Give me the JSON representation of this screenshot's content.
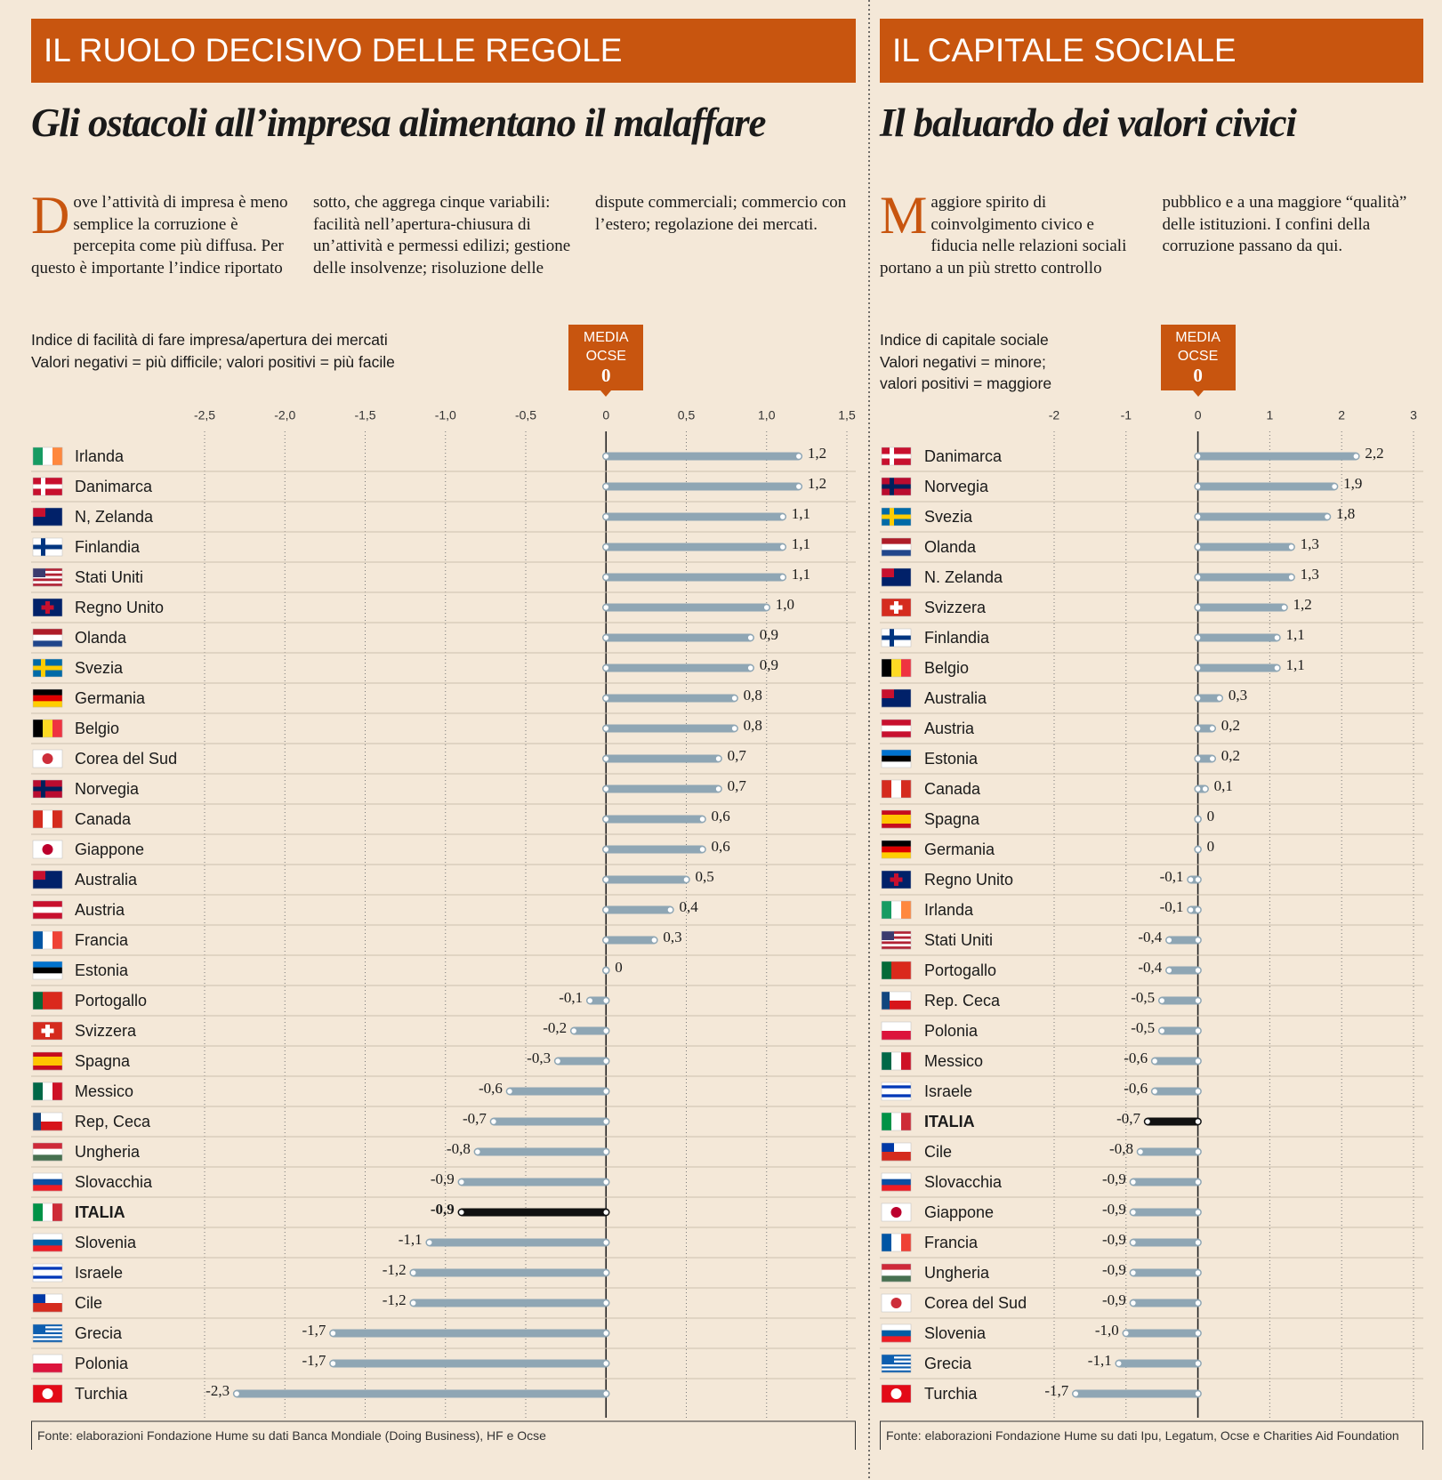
{
  "chart_data": [
    {
      "type": "bar",
      "header": "IL RUOLO DECISIVO DELLE REGOLE",
      "title": "Gli ostacoli all’impresa alimentano il malaffare",
      "intro": "Dove l’attività di impresa è meno semplice la corruzione è percepita come più diffusa. Per questo è importante l’indice riportato sotto, che aggrega cinque variabili: facilità nell’apertura-chiusura di un’attività e permessi edilizi; gestione delle insolvenze; risoluzione delle dispute commerciali; commercio con l’estero; regolazione dei mercati.",
      "subtitle": [
        "Indice di facilità di fare impresa/apertura dei mercati",
        "Valori negativi = più difficile; valori positivi = più facile"
      ],
      "mean_label": "MEDIA OCSE",
      "mean_value": 0,
      "categories": [
        "Irlanda",
        "Danimarca",
        "N, Zelanda",
        "Finlandia",
        "Stati Uniti",
        "Regno Unito",
        "Olanda",
        "Svezia",
        "Germania",
        "Belgio",
        "Corea del Sud",
        "Norvegia",
        "Canada",
        "Giappone",
        "Australia",
        "Austria",
        "Francia",
        "Estonia",
        "Portogallo",
        "Svizzera",
        "Spagna",
        "Messico",
        "Rep, Ceca",
        "Ungheria",
        "Slovacchia",
        "ITALIA",
        "Slovenia",
        "Israele",
        "Cile",
        "Grecia",
        "Polonia",
        "Turchia"
      ],
      "values": [
        1.2,
        1.2,
        1.1,
        1.1,
        1.1,
        1.0,
        0.9,
        0.9,
        0.8,
        0.8,
        0.7,
        0.7,
        0.6,
        0.6,
        0.5,
        0.4,
        0.3,
        0,
        -0.1,
        -0.2,
        -0.3,
        -0.6,
        -0.7,
        -0.8,
        -0.9,
        -0.9,
        -1.1,
        -1.2,
        -1.2,
        -1.7,
        -1.7,
        -2.3
      ],
      "value_labels": [
        "1,2",
        "1,2",
        "1,1",
        "1,1",
        "1,1",
        "1,0",
        "0,9",
        "0,9",
        "0,8",
        "0,8",
        "0,7",
        "0,7",
        "0,6",
        "0,6",
        "0,5",
        "0,4",
        "0,3",
        "0",
        "-0,1",
        "-0,2",
        "-0,3",
        "-0,6",
        "-0,7",
        "-0,8",
        "-0,9",
        "-0,9",
        "-1,1",
        "-1,2",
        "-1,2",
        "-1,7",
        "-1,7",
        "-2,3"
      ],
      "color": "#8fa6b4",
      "highlight": "ITALIA",
      "highlight_color": "#111111",
      "xlim": [
        -2.5,
        1.5
      ],
      "xticks": [
        {
          "value": -2.5,
          "label": "-2,5"
        },
        {
          "value": -2,
          "label": "-2,0"
        },
        {
          "value": -1.5,
          "label": "-1,5"
        },
        {
          "value": -1,
          "label": "-1,0"
        },
        {
          "value": -0.5,
          "label": "-0,5"
        },
        0,
        {
          "value": 0.5,
          "label": "0,5"
        },
        {
          "value": 1,
          "label": "1,0"
        },
        {
          "value": 1.5,
          "label": "1,5"
        }
      ],
      "source": "Fonte: elaborazioni Fondazione Hume su dati Banca Mondiale (Doing Business), HF e Ocse"
    },
    {
      "type": "bar",
      "header": "IL CAPITALE SOCIALE",
      "title": "Il baluardo dei valori civici",
      "intro": "Maggiore spirito di coinvolgimento civico e fiducia nelle relazioni sociali portano a un più stretto controllo pubblico e a una maggiore “qualità” delle istituzioni. I confini della corruzione passano da qui.",
      "subtitle": [
        "Indice di capitale sociale",
        "Valori negativi = minore;",
        "valori positivi = maggiore"
      ],
      "mean_label": "MEDIA OCSE",
      "mean_value": 0,
      "categories": [
        "Danimarca",
        "Norvegia",
        "Svezia",
        "Olanda",
        "N. Zelanda",
        "Svizzera",
        "Finlandia",
        "Belgio",
        "Australia",
        "Austria",
        "Estonia",
        "Canada",
        "Spagna",
        "Germania",
        "Regno Unito",
        "Irlanda",
        "Stati Uniti",
        "Portogallo",
        "Rep. Ceca",
        "Polonia",
        "Messico",
        "Israele",
        "ITALIA",
        "Cile",
        "Slovacchia",
        "Giappone",
        "Francia",
        "Ungheria",
        "Corea del Sud",
        "Slovenia",
        "Grecia",
        "Turchia"
      ],
      "values": [
        2.2,
        1.9,
        1.8,
        1.3,
        1.3,
        1.2,
        1.1,
        1.1,
        0.3,
        0.2,
        0.2,
        0.1,
        0,
        0,
        -0.1,
        -0.1,
        -0.4,
        -0.4,
        -0.5,
        -0.5,
        -0.6,
        -0.6,
        -0.7,
        -0.8,
        -0.9,
        -0.9,
        -0.9,
        -0.9,
        -0.9,
        -1.0,
        -1.1,
        -1.7
      ],
      "value_labels": [
        "2,2",
        "1,9",
        "1,8",
        "1,3",
        "1,3",
        "1,2",
        "1,1",
        "1,1",
        "0,3",
        "0,2",
        "0,2",
        "0,1",
        "0",
        "0",
        "-0,1",
        "-0,1",
        "-0,4",
        "-0,4",
        "-0,5",
        "-0,5",
        "-0,6",
        "-0,6",
        "-0,7",
        "-0,8",
        "-0,9",
        "-0,9",
        "-0,9",
        "-0,9",
        "-0,9",
        "-1,0",
        "-1,1",
        "-1,7"
      ],
      "color": "#8fa6b4",
      "highlight": "ITALIA",
      "highlight_color": "#111111",
      "xlim": [
        -2,
        3
      ],
      "xticks": [
        -2,
        -1,
        0,
        1,
        2,
        3
      ],
      "source": "Fonte: elaborazioni Fondazione Hume su dati Ipu, Legatum, Ocse e Charities Aid Foundation"
    }
  ]
}
